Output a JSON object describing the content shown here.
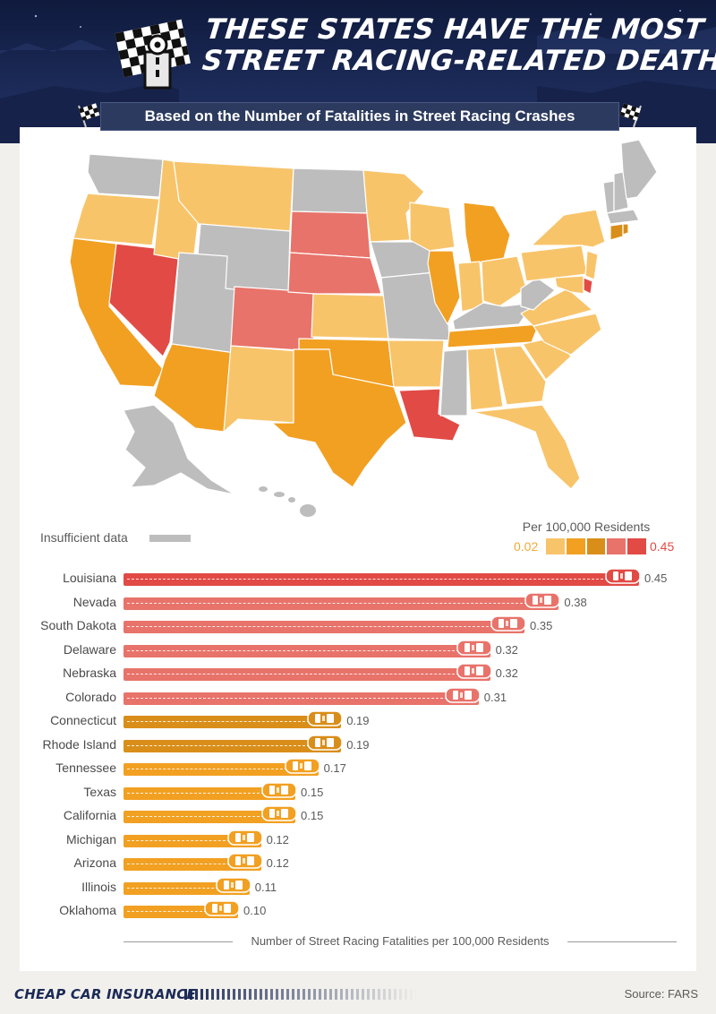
{
  "header": {
    "title_line1": "THESE STATES HAVE THE MOST",
    "title_line2": "STREET RACING-RELATED DEATHS",
    "subtitle": "Based on the Number of Fatalities in Street Racing Crashes"
  },
  "legend": {
    "insufficient_label": "Insufficient data",
    "scale_title": "Per 100,000 Residents",
    "scale_min": "0.02",
    "scale_max": "0.45",
    "scale_colors": [
      "#f8c46a",
      "#f2a022",
      "#d98e1a",
      "#e8736a",
      "#e24a45"
    ],
    "na_color": "#bdbdbd"
  },
  "chart_data": {
    "type": "bar",
    "orientation": "horizontal",
    "categories": [
      "Louisiana",
      "Nevada",
      "South Dakota",
      "Delaware",
      "Nebraska",
      "Colorado",
      "Connecticut",
      "Rhode Island",
      "Tennessee",
      "Texas",
      "California",
      "Michigan",
      "Arizona",
      "Illinois",
      "Oklahoma"
    ],
    "values": [
      0.45,
      0.38,
      0.35,
      0.32,
      0.32,
      0.31,
      0.19,
      0.19,
      0.17,
      0.15,
      0.15,
      0.12,
      0.12,
      0.11,
      0.1
    ],
    "value_labels": [
      "0.45",
      "0.38",
      "0.35",
      "0.32",
      "0.32",
      "0.31",
      "0.19",
      "0.19",
      "0.17",
      "0.15",
      "0.15",
      "0.12",
      "0.12",
      "0.11",
      "0.10"
    ],
    "xlabel": "Number of Street Racing Fatalities per 100,000 Residents",
    "xlim": [
      0,
      0.5
    ]
  },
  "footer": {
    "brand": "CHEAP CAR INSURANCE",
    "source": "Source: FARS"
  }
}
